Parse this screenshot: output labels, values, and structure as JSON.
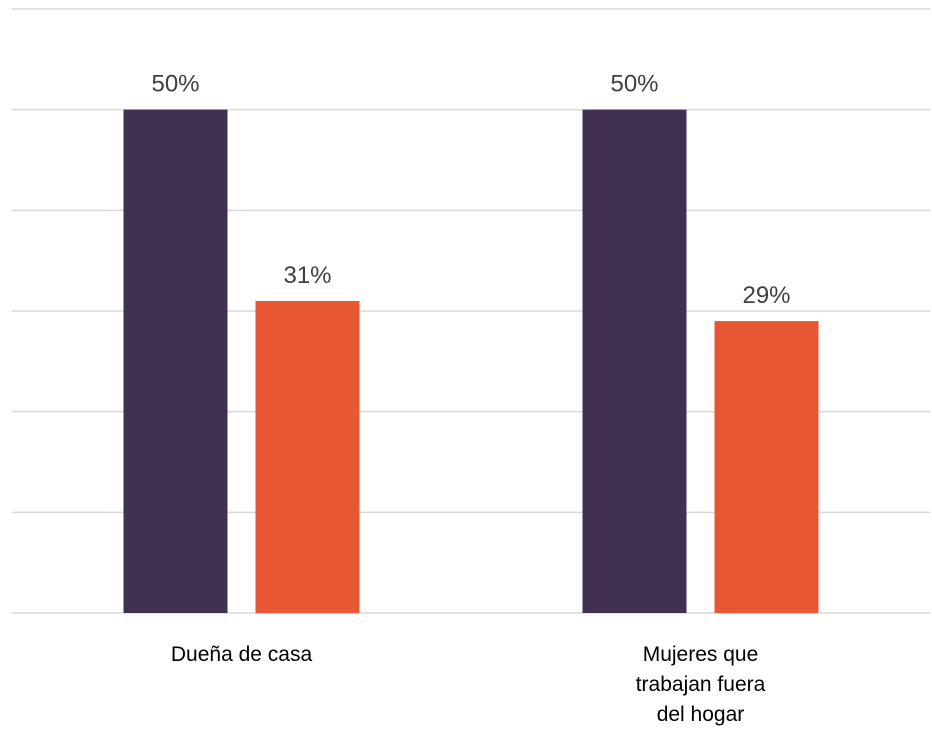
{
  "chart_data": {
    "type": "bar",
    "categories": [
      [
        "Dueña de casa"
      ],
      [
        "Mujeres que",
        "trabajan fuera",
        "del hogar"
      ]
    ],
    "series": [
      {
        "values": [
          50,
          50
        ],
        "labels": [
          "50%",
          "50%"
        ],
        "color": "#403152"
      },
      {
        "values": [
          31,
          29
        ],
        "labels": [
          "31%",
          "29%"
        ],
        "color": "#e85733"
      }
    ],
    "title": "",
    "xlabel": "",
    "ylabel": "",
    "ylim": [
      0,
      60
    ],
    "grid": true,
    "legend": "none"
  }
}
